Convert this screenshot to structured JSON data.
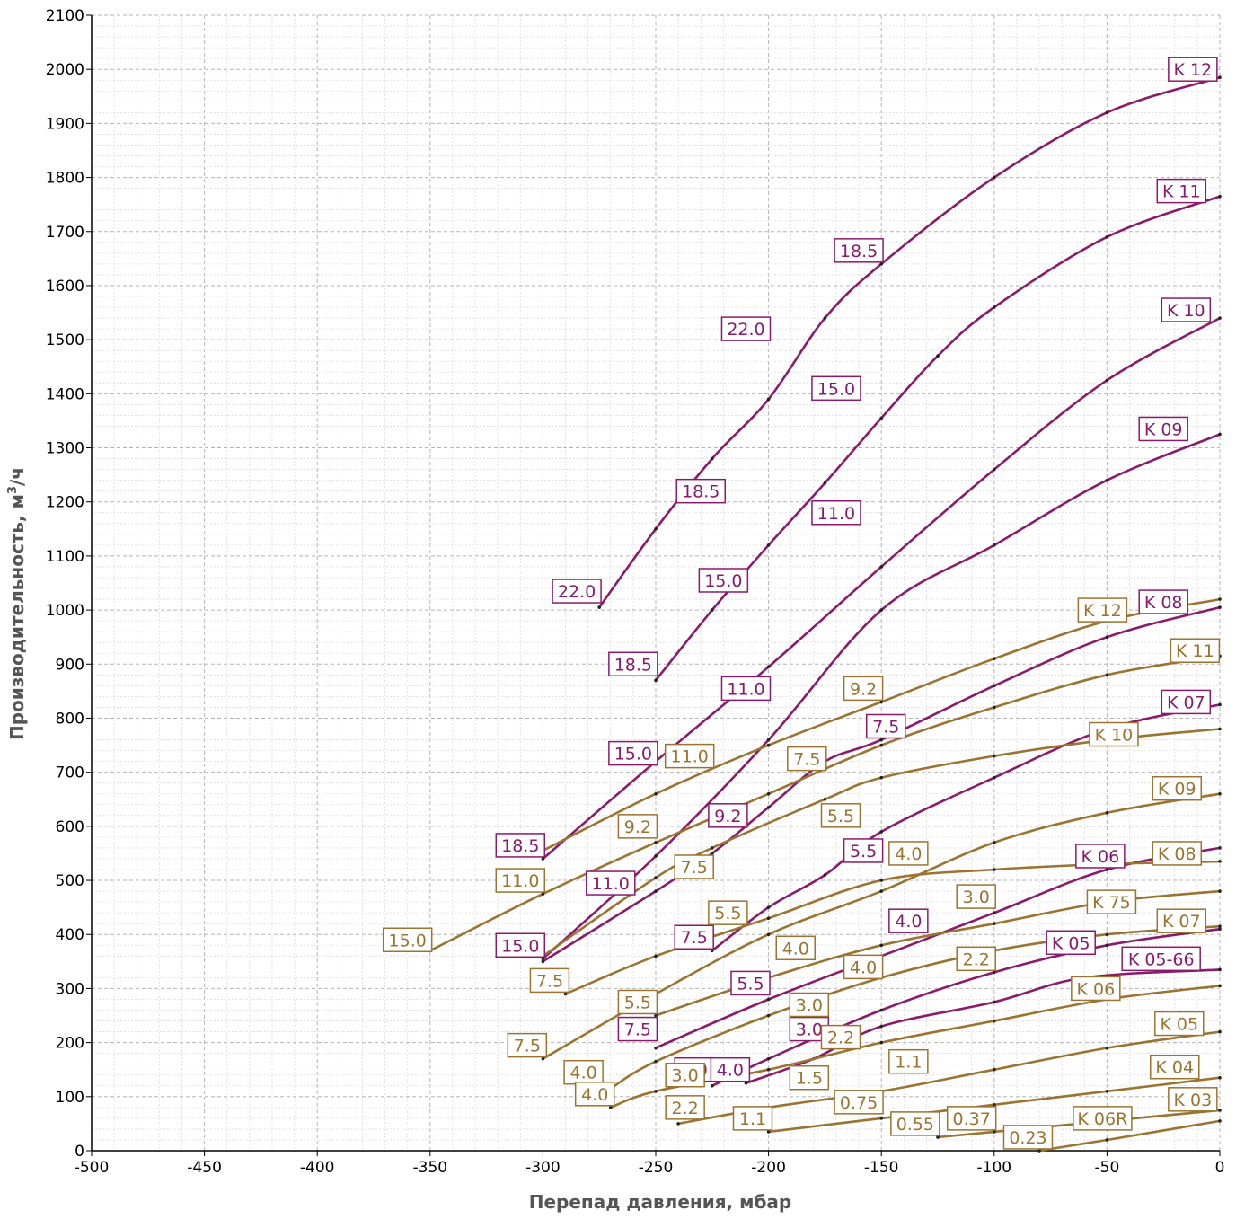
{
  "chart_data": {
    "type": "line",
    "xlabel": "Перепад давления, мбар",
    "ylabel_main": "Производительность, м",
    "ylabel_sup": "3",
    "ylabel_tail": "/ч",
    "xlim": [
      -500,
      0
    ],
    "ylim": [
      0,
      2100
    ],
    "x_ticks": [
      "-500",
      "-450",
      "-400",
      "-350",
      "-300",
      "-250",
      "-200",
      "-150",
      "-100",
      "-50",
      "0"
    ],
    "y_ticks": [
      "0",
      "100",
      "200",
      "300",
      "400",
      "500",
      "600",
      "700",
      "800",
      "900",
      "1000",
      "1100",
      "1200",
      "1300",
      "1400",
      "1500",
      "1600",
      "1700",
      "1800",
      "1900",
      "2000",
      "2100"
    ],
    "grid": true,
    "colors": {
      "purple": "#8b1a6b",
      "gold": "#9a7430"
    },
    "series": [
      {
        "name": "K 12",
        "color": "purple",
        "points": [
          [
            -275,
            1005
          ],
          [
            -250,
            1150
          ],
          [
            -225,
            1280
          ],
          [
            -200,
            1390
          ],
          [
            -175,
            1540
          ],
          [
            -150,
            1640
          ],
          [
            -100,
            1800
          ],
          [
            -50,
            1920
          ],
          [
            0,
            1985
          ]
        ]
      },
      {
        "name": "K 11",
        "color": "purple",
        "points": [
          [
            -250,
            870
          ],
          [
            -225,
            1000
          ],
          [
            -200,
            1120
          ],
          [
            -175,
            1235
          ],
          [
            -150,
            1355
          ],
          [
            -125,
            1470
          ],
          [
            -100,
            1560
          ],
          [
            -50,
            1690
          ],
          [
            0,
            1765
          ]
        ]
      },
      {
        "name": "K 10",
        "color": "purple",
        "points": [
          [
            -300,
            540
          ],
          [
            -250,
            720
          ],
          [
            -200,
            895
          ],
          [
            -150,
            1080
          ],
          [
            -100,
            1260
          ],
          [
            -50,
            1425
          ],
          [
            0,
            1540
          ]
        ]
      },
      {
        "name": "K 09",
        "color": "purple",
        "points": [
          [
            -300,
            355
          ],
          [
            -250,
            545
          ],
          [
            -200,
            760
          ],
          [
            -150,
            1000
          ],
          [
            -100,
            1120
          ],
          [
            -50,
            1240
          ],
          [
            0,
            1325
          ]
        ]
      },
      {
        "name": "K 08",
        "color": "purple",
        "points": [
          [
            -300,
            350
          ],
          [
            -250,
            480
          ],
          [
            -225,
            550
          ],
          [
            -200,
            635
          ],
          [
            -175,
            720
          ],
          [
            -150,
            760
          ],
          [
            -100,
            860
          ],
          [
            -50,
            950
          ],
          [
            0,
            1005
          ]
        ]
      },
      {
        "name": "K 07",
        "color": "purple",
        "points": [
          [
            -225,
            370
          ],
          [
            -200,
            450
          ],
          [
            -175,
            510
          ],
          [
            -150,
            590
          ],
          [
            -100,
            690
          ],
          [
            -50,
            780
          ],
          [
            0,
            825
          ]
        ]
      },
      {
        "name": "K 06",
        "color": "purple",
        "points": [
          [
            -250,
            190
          ],
          [
            -200,
            280
          ],
          [
            -150,
            360
          ],
          [
            -100,
            440
          ],
          [
            -50,
            520
          ],
          [
            0,
            560
          ]
        ]
      },
      {
        "name": "K 05-66",
        "color": "purple",
        "points": [
          [
            -225,
            120
          ],
          [
            -200,
            170
          ],
          [
            -150,
            260
          ],
          [
            -100,
            330
          ],
          [
            -50,
            380
          ],
          [
            0,
            410
          ]
        ]
      },
      {
        "name": "K 05",
        "color": "purple",
        "points": [
          [
            -210,
            125
          ],
          [
            -180,
            170
          ],
          [
            -150,
            230
          ],
          [
            -100,
            275
          ],
          [
            -60,
            320
          ],
          [
            0,
            335
          ]
        ]
      },
      {
        "name": "K 12",
        "color": "gold",
        "points": [
          [
            -300,
            555
          ],
          [
            -250,
            660
          ],
          [
            -200,
            750
          ],
          [
            -150,
            830
          ],
          [
            -100,
            910
          ],
          [
            -50,
            980
          ],
          [
            0,
            1020
          ]
        ]
      },
      {
        "name": "K 11",
        "color": "gold",
        "points": [
          [
            -350,
            370
          ],
          [
            -300,
            475
          ],
          [
            -250,
            570
          ],
          [
            -200,
            660
          ],
          [
            -150,
            750
          ],
          [
            -100,
            820
          ],
          [
            -50,
            880
          ],
          [
            0,
            915
          ]
        ]
      },
      {
        "name": "K 10",
        "color": "gold",
        "points": [
          [
            -300,
            360
          ],
          [
            -250,
            505
          ],
          [
            -225,
            560
          ],
          [
            -175,
            650
          ],
          [
            -150,
            690
          ],
          [
            -100,
            730
          ],
          [
            -50,
            760
          ],
          [
            0,
            780
          ]
        ]
      },
      {
        "name": "K 09",
        "color": "gold",
        "points": [
          [
            -300,
            170
          ],
          [
            -250,
            290
          ],
          [
            -200,
            400
          ],
          [
            -150,
            480
          ],
          [
            -100,
            570
          ],
          [
            -50,
            625
          ],
          [
            0,
            660
          ]
        ]
      },
      {
        "name": "K 08",
        "color": "gold",
        "points": [
          [
            -290,
            290
          ],
          [
            -250,
            360
          ],
          [
            -200,
            430
          ],
          [
            -150,
            500
          ],
          [
            -100,
            520
          ],
          [
            -50,
            530
          ],
          [
            0,
            535
          ]
        ]
      },
      {
        "name": "K 75",
        "color": "gold",
        "points": [
          [
            -250,
            250
          ],
          [
            -200,
            320
          ],
          [
            -150,
            380
          ],
          [
            -100,
            420
          ],
          [
            -50,
            460
          ],
          [
            0,
            480
          ]
        ]
      },
      {
        "name": "K 07",
        "color": "gold",
        "points": [
          [
            -270,
            115
          ],
          [
            -250,
            165
          ],
          [
            -200,
            250
          ],
          [
            -150,
            320
          ],
          [
            -100,
            370
          ],
          [
            -50,
            400
          ],
          [
            0,
            415
          ]
        ]
      },
      {
        "name": "K 06",
        "color": "gold",
        "points": [
          [
            -270,
            80
          ],
          [
            -250,
            110
          ],
          [
            -200,
            150
          ],
          [
            -150,
            200
          ],
          [
            -100,
            240
          ],
          [
            -50,
            280
          ],
          [
            0,
            305
          ]
        ]
      },
      {
        "name": "K 05",
        "color": "gold",
        "points": [
          [
            -240,
            50
          ],
          [
            -200,
            80
          ],
          [
            -150,
            110
          ],
          [
            -100,
            150
          ],
          [
            -50,
            190
          ],
          [
            0,
            220
          ]
        ]
      },
      {
        "name": "K 04",
        "color": "gold",
        "points": [
          [
            -200,
            35
          ],
          [
            -150,
            60
          ],
          [
            -100,
            85
          ],
          [
            -50,
            110
          ],
          [
            0,
            135
          ]
        ]
      },
      {
        "name": "K 06R",
        "color": "gold",
        "points": [
          [
            -125,
            25
          ],
          [
            -100,
            35
          ],
          [
            -50,
            55
          ],
          [
            0,
            75
          ]
        ]
      },
      {
        "name": "K 03",
        "color": "gold",
        "points": [
          [
            -80,
            0
          ],
          [
            -50,
            20
          ],
          [
            0,
            55
          ]
        ]
      }
    ],
    "annotations": [
      {
        "text": "K 12",
        "x": -12,
        "y": 2000,
        "color": "purple",
        "anchor": [
          -200,
          1490
        ],
        "anchorText": "22.0"
      },
      {
        "text": "K 11",
        "x": -17,
        "y": 1775,
        "color": "purple"
      },
      {
        "text": "K 10",
        "x": -15,
        "y": 1555,
        "color": "purple"
      },
      {
        "text": "K 09",
        "x": -25,
        "y": 1335,
        "color": "purple"
      },
      {
        "text": "K 08",
        "x": -25,
        "y": 1015,
        "color": "purple"
      },
      {
        "text": "K 07",
        "x": -15,
        "y": 830,
        "color": "purple"
      },
      {
        "text": "K 06",
        "x": -53,
        "y": 545,
        "color": "purple"
      },
      {
        "text": "K 05",
        "x": -66,
        "y": 385,
        "color": "purple"
      },
      {
        "text": "K 05-66",
        "x": -26,
        "y": 355,
        "color": "purple"
      },
      {
        "text": "18.5",
        "x": -160,
        "y": 1665,
        "color": "purple"
      },
      {
        "text": "22.0",
        "x": -210,
        "y": 1520,
        "color": "purple"
      },
      {
        "text": "15.0",
        "x": -170,
        "y": 1410,
        "color": "purple"
      },
      {
        "text": "18.5",
        "x": -230,
        "y": 1220,
        "color": "purple"
      },
      {
        "text": "11.0",
        "x": -170,
        "y": 1180,
        "color": "purple"
      },
      {
        "text": "22.0",
        "x": -285,
        "y": 1035,
        "color": "purple"
      },
      {
        "text": "15.0",
        "x": -220,
        "y": 1055,
        "color": "purple"
      },
      {
        "text": "11.0",
        "x": -210,
        "y": 855,
        "color": "purple"
      },
      {
        "text": "18.5",
        "x": -260,
        "y": 900,
        "color": "purple"
      },
      {
        "text": "7.5",
        "x": -148,
        "y": 785,
        "color": "purple"
      },
      {
        "text": "15.0",
        "x": -260,
        "y": 735,
        "color": "purple"
      },
      {
        "text": "9.2",
        "x": -218,
        "y": 620,
        "color": "purple"
      },
      {
        "text": "5.5",
        "x": -158,
        "y": 555,
        "color": "purple"
      },
      {
        "text": "18.5",
        "x": -310,
        "y": 565,
        "color": "purple"
      },
      {
        "text": "11.0",
        "x": -270,
        "y": 495,
        "color": "purple"
      },
      {
        "text": "4.0",
        "x": -138,
        "y": 425,
        "color": "purple"
      },
      {
        "text": "15.0",
        "x": -310,
        "y": 380,
        "color": "purple"
      },
      {
        "text": "7.5",
        "x": -233,
        "y": 395,
        "color": "purple"
      },
      {
        "text": "5.5",
        "x": -208,
        "y": 310,
        "color": "purple"
      },
      {
        "text": "7.5",
        "x": -258,
        "y": 225,
        "color": "purple"
      },
      {
        "text": "3.0",
        "x": -182,
        "y": 225,
        "color": "purple"
      },
      {
        "text": "4.0",
        "x": -233,
        "y": 150,
        "color": "purple"
      },
      {
        "text": "4.0",
        "x": -217,
        "y": 150,
        "color": "purple"
      },
      {
        "text": "K 12",
        "x": -52,
        "y": 1000,
        "color": "gold"
      },
      {
        "text": "K 11",
        "x": -11,
        "y": 925,
        "color": "gold"
      },
      {
        "text": "K 10",
        "x": -47,
        "y": 770,
        "color": "gold"
      },
      {
        "text": "K 09",
        "x": -19,
        "y": 670,
        "color": "gold"
      },
      {
        "text": "K 08",
        "x": -19,
        "y": 550,
        "color": "gold"
      },
      {
        "text": "K 75",
        "x": -48,
        "y": 460,
        "color": "gold"
      },
      {
        "text": "K 07",
        "x": -17,
        "y": 425,
        "color": "gold"
      },
      {
        "text": "K 06",
        "x": -55,
        "y": 300,
        "color": "gold"
      },
      {
        "text": "K 05",
        "x": -18,
        "y": 235,
        "color": "gold"
      },
      {
        "text": "K 04",
        "x": -20,
        "y": 155,
        "color": "gold"
      },
      {
        "text": "K 03",
        "x": -12,
        "y": 95,
        "color": "gold"
      },
      {
        "text": "K 06R",
        "x": -52,
        "y": 60,
        "color": "gold"
      },
      {
        "text": "9.2",
        "x": -158,
        "y": 855,
        "color": "gold"
      },
      {
        "text": "11.0",
        "x": -235,
        "y": 730,
        "color": "gold"
      },
      {
        "text": "7.5",
        "x": -183,
        "y": 725,
        "color": "gold"
      },
      {
        "text": "5.5",
        "x": -168,
        "y": 620,
        "color": "gold"
      },
      {
        "text": "9.2",
        "x": -258,
        "y": 600,
        "color": "gold"
      },
      {
        "text": "4.0",
        "x": -138,
        "y": 550,
        "color": "gold"
      },
      {
        "text": "11.0",
        "x": -310,
        "y": 500,
        "color": "gold"
      },
      {
        "text": "7.5",
        "x": -233,
        "y": 525,
        "color": "gold"
      },
      {
        "text": "3.0",
        "x": -108,
        "y": 470,
        "color": "gold"
      },
      {
        "text": "5.5",
        "x": -218,
        "y": 440,
        "color": "gold"
      },
      {
        "text": "15.0",
        "x": -360,
        "y": 390,
        "color": "gold"
      },
      {
        "text": "4.0",
        "x": -188,
        "y": 375,
        "color": "gold"
      },
      {
        "text": "2.2",
        "x": -108,
        "y": 355,
        "color": "gold"
      },
      {
        "text": "4.0",
        "x": -158,
        "y": 340,
        "color": "gold"
      },
      {
        "text": "7.5",
        "x": -297,
        "y": 315,
        "color": "gold"
      },
      {
        "text": "5.5",
        "x": -258,
        "y": 275,
        "color": "gold"
      },
      {
        "text": "3.0",
        "x": -182,
        "y": 270,
        "color": "gold"
      },
      {
        "text": "2.2",
        "x": -168,
        "y": 210,
        "color": "gold"
      },
      {
        "text": "1.1",
        "x": -138,
        "y": 165,
        "color": "gold"
      },
      {
        "text": "7.5",
        "x": -307,
        "y": 195,
        "color": "gold"
      },
      {
        "text": "4.0",
        "x": -282,
        "y": 145,
        "color": "gold"
      },
      {
        "text": "3.0",
        "x": -237,
        "y": 140,
        "color": "gold"
      },
      {
        "text": "1.5",
        "x": -182,
        "y": 135,
        "color": "gold"
      },
      {
        "text": "4.0",
        "x": -277,
        "y": 105,
        "color": "gold"
      },
      {
        "text": "0.75",
        "x": -160,
        "y": 90,
        "color": "gold"
      },
      {
        "text": "2.2",
        "x": -237,
        "y": 80,
        "color": "gold"
      },
      {
        "text": "1.1",
        "x": -207,
        "y": 60,
        "color": "gold"
      },
      {
        "text": "0.55",
        "x": -135,
        "y": 50,
        "color": "gold"
      },
      {
        "text": "0.37",
        "x": -110,
        "y": 60,
        "color": "gold"
      },
      {
        "text": "0.23",
        "x": -85,
        "y": 25,
        "color": "gold"
      }
    ]
  }
}
